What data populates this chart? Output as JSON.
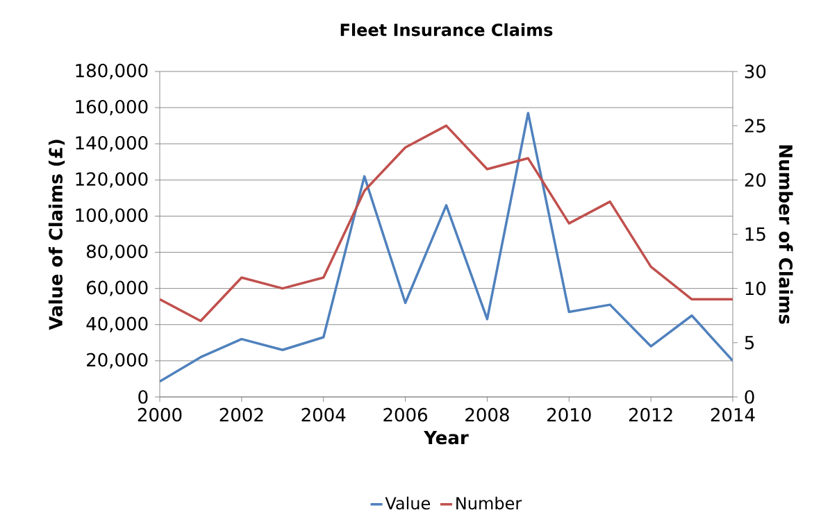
{
  "chart_data": {
    "type": "line",
    "title": "Fleet Insurance Claims",
    "xlabel": "Year",
    "ylabel": "Value of Claims (£)",
    "y2label": "Number of Claims",
    "x": [
      2000,
      2001,
      2002,
      2003,
      2004,
      2005,
      2006,
      2007,
      2008,
      2009,
      2010,
      2011,
      2012,
      2013,
      2014
    ],
    "series": [
      {
        "name": "Value",
        "color": "#4f81bd",
        "values": [
          8500,
          22000,
          32000,
          26000,
          33000,
          122000,
          52000,
          106000,
          43000,
          157000,
          47000,
          51000,
          28000,
          45000,
          20000
        ]
      },
      {
        "name": "Number",
        "color": "#c0504d",
        "axis": "y2",
        "values": [
          9,
          7,
          11,
          10,
          11,
          19,
          23,
          25,
          21,
          22,
          16,
          18,
          12,
          9,
          9
        ]
      }
    ],
    "xlim": [
      2000,
      2014
    ],
    "xticks": [
      2000,
      2002,
      2004,
      2006,
      2008,
      2010,
      2012,
      2014
    ],
    "ylim": [
      0,
      180000
    ],
    "yticks": [
      0,
      {
        "value": 20000,
        "label": "20,000"
      },
      {
        "value": 40000,
        "label": "40,000"
      },
      {
        "value": 60000,
        "label": "60,000"
      },
      {
        "value": 80000,
        "label": "80,000"
      },
      {
        "value": 100000,
        "label": "100,000"
      },
      {
        "value": 120000,
        "label": "120,000"
      },
      {
        "value": 140000,
        "label": "140,000"
      },
      {
        "value": 160000,
        "label": "160,000"
      },
      {
        "value": 180000,
        "label": "180,000"
      }
    ],
    "y2lim": [
      0,
      30
    ],
    "y2ticks": [
      0,
      5,
      10,
      15,
      20,
      25,
      30
    ],
    "grid": "y",
    "legend": "bottom"
  }
}
